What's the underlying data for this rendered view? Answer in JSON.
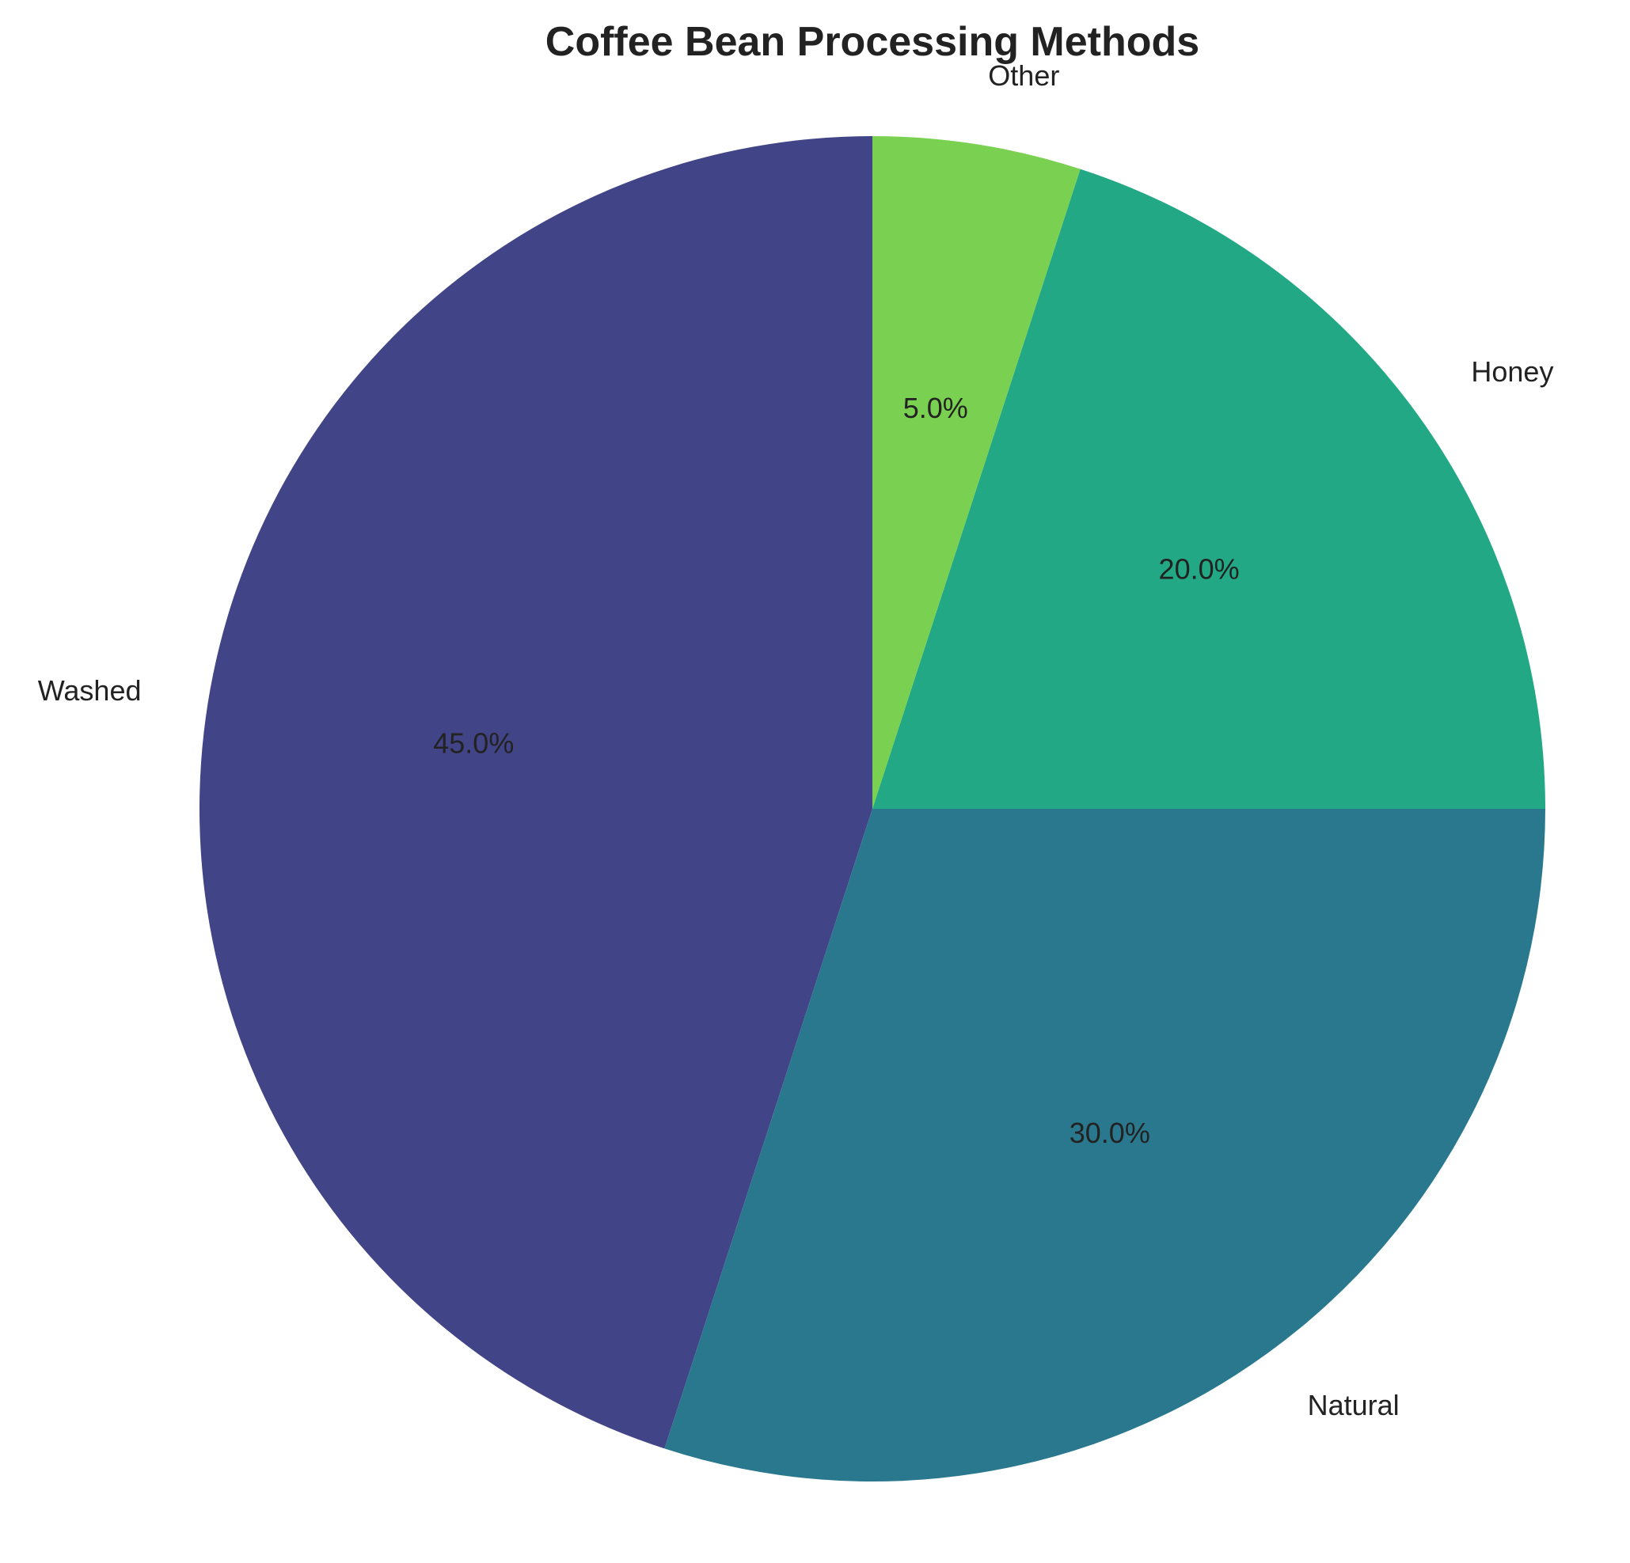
{
  "chart_data": {
    "type": "pie",
    "title": "Coffee Bean Processing Methods",
    "categories": [
      "Washed",
      "Natural",
      "Honey",
      "Other"
    ],
    "values": [
      45,
      30,
      20,
      5
    ],
    "percent_labels": [
      "45.0%",
      "30.0%",
      "20.0%",
      "5.0%"
    ],
    "colors": [
      "#414487",
      "#2a788e",
      "#22a884",
      "#7ad151"
    ],
    "start_angle_deg": 90,
    "direction": "counterclockwise",
    "legend": "none"
  }
}
